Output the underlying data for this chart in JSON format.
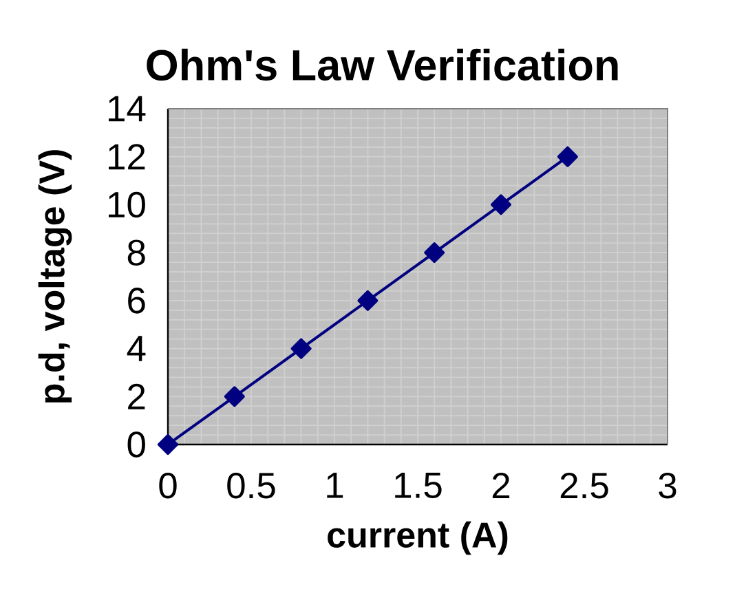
{
  "chart_data": {
    "type": "line",
    "title": "Ohm's Law Verification",
    "xlabel": "current (A)",
    "ylabel": "p.d, voltage (V)",
    "x": [
      0,
      0.4,
      0.8,
      1.2,
      1.6,
      2.0,
      2.4
    ],
    "series": [
      {
        "color": "#000080",
        "values": [
          0,
          2,
          4,
          6,
          8,
          10,
          12
        ]
      }
    ],
    "xlim": [
      0,
      3
    ],
    "ylim": [
      0,
      14
    ],
    "xticks": [
      0,
      0.5,
      1,
      1.5,
      2,
      2.5,
      3
    ],
    "yticks": [
      0,
      2,
      4,
      6,
      8,
      10,
      12,
      14
    ],
    "grid": true,
    "marker": "diamond",
    "line_style": "solid"
  }
}
